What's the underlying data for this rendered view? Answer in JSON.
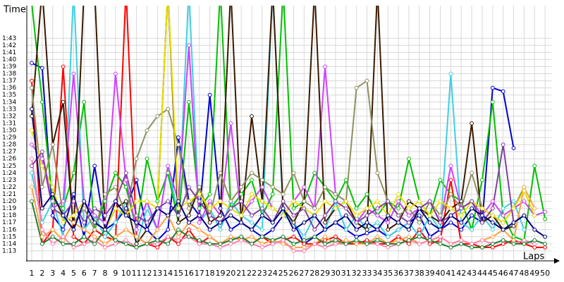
{
  "chart_data": {
    "type": "line",
    "y_label": "Time",
    "x_label": "Laps",
    "grid": true,
    "x": [
      1,
      2,
      3,
      4,
      5,
      6,
      7,
      8,
      9,
      10,
      11,
      12,
      13,
      14,
      15,
      16,
      17,
      18,
      19,
      20,
      21,
      22,
      23,
      24,
      25,
      26,
      27,
      28,
      29,
      30,
      31,
      32,
      33,
      34,
      35,
      36,
      37,
      38,
      39,
      40,
      41,
      42,
      43,
      44,
      45,
      46,
      47,
      48,
      49,
      50
    ],
    "xlim": [
      0.5,
      50.5
    ],
    "xticks": [
      1,
      2,
      3,
      4,
      5,
      6,
      7,
      8,
      9,
      10,
      11,
      12,
      13,
      14,
      15,
      16,
      17,
      18,
      19,
      20,
      21,
      22,
      23,
      24,
      25,
      26,
      27,
      28,
      29,
      30,
      31,
      32,
      33,
      34,
      35,
      36,
      37,
      38,
      39,
      40,
      41,
      42,
      43,
      44,
      45,
      46,
      47,
      48,
      49,
      50
    ],
    "ylim": [
      71.6,
      107.6
    ],
    "yticks": [
      {
        "value": 73,
        "label": "1:13"
      },
      {
        "value": 74,
        "label": "1:14"
      },
      {
        "value": 75,
        "label": "1:15"
      },
      {
        "value": 76,
        "label": "1:16"
      },
      {
        "value": 77,
        "label": "1:17"
      },
      {
        "value": 78,
        "label": "1:18"
      },
      {
        "value": 79,
        "label": "1:19"
      },
      {
        "value": 80,
        "label": "1:20"
      },
      {
        "value": 81,
        "label": "1:21"
      },
      {
        "value": 82,
        "label": "1:22"
      },
      {
        "value": 83,
        "label": "1:23"
      },
      {
        "value": 84,
        "label": "1:24"
      },
      {
        "value": 85,
        "label": "1:25"
      },
      {
        "value": 86,
        "label": "1:26"
      },
      {
        "value": 87,
        "label": "1:27"
      },
      {
        "value": 88,
        "label": "1:28"
      },
      {
        "value": 89,
        "label": "1:29"
      },
      {
        "value": 90,
        "label": "1:30"
      },
      {
        "value": 91,
        "label": "1:31"
      },
      {
        "value": 92,
        "label": "1:32"
      },
      {
        "value": 93,
        "label": "1:33"
      },
      {
        "value": 94,
        "label": "1:34"
      },
      {
        "value": 95,
        "label": "1:35"
      },
      {
        "value": 96,
        "label": "1:36"
      },
      {
        "value": 97,
        "label": "1:37"
      },
      {
        "value": 98,
        "label": "1:38"
      },
      {
        "value": 99,
        "label": "1:39"
      },
      {
        "value": 100,
        "label": "1:40"
      },
      {
        "value": 101,
        "label": "1:41"
      },
      {
        "value": 102,
        "label": "1:42"
      },
      {
        "value": 103,
        "label": "1:43"
      }
    ],
    "series": [
      {
        "color": "#0000d0",
        "values": [
          99.5,
          98.8,
          78,
          76,
          81,
          75,
          85,
          76,
          77,
          79,
          83,
          76,
          74.5,
          76,
          89,
          80,
          78,
          95,
          79,
          76,
          77,
          76,
          75,
          76,
          78,
          77,
          74,
          75,
          76,
          77,
          76,
          75,
          75.5,
          76,
          75,
          76,
          77,
          78,
          75,
          76,
          77,
          76,
          78,
          77,
          96,
          95.5,
          87.5,
          null,
          null,
          null
        ]
      },
      {
        "color": "#ff0000",
        "values": [
          97,
          74,
          76,
          99,
          75,
          74,
          76,
          75,
          74.5,
          110,
          75,
          74,
          73.5,
          75,
          74,
          76,
          74,
          75,
          74,
          74.5,
          75,
          74,
          75,
          74,
          74.5,
          75,
          74,
          74,
          74.5,
          75,
          74,
          74,
          74.5,
          74,
          74,
          75,
          74,
          76,
          74,
          74.5,
          83,
          74,
          74,
          73.5,
          73.5,
          74,
          74.5,
          74,
          73.5,
          73.5
        ]
      },
      {
        "color": "#00c000",
        "values": [
          108,
          94,
          80,
          79,
          84,
          94,
          76,
          80,
          84,
          82,
          76,
          86,
          80,
          84,
          77,
          94,
          79,
          81,
          110,
          79,
          81,
          83,
          78,
          81,
          110,
          79,
          80,
          84,
          82,
          80,
          83,
          79,
          81,
          78,
          80,
          79,
          86,
          80,
          78,
          83,
          81,
          80,
          76,
          83,
          94,
          78,
          75,
          74.5,
          85,
          77.5
        ]
      },
      {
        "color": "#40d0e0",
        "values": [
          84,
          77,
          80,
          75,
          110,
          76,
          78,
          75,
          77,
          80,
          74,
          79,
          76,
          85,
          78,
          110,
          77,
          79,
          76,
          80,
          78,
          77,
          76,
          110,
          78,
          77,
          75,
          78,
          76,
          80,
          76,
          78,
          76,
          77,
          75,
          76,
          77,
          75,
          78,
          76,
          98,
          77,
          76,
          78,
          76,
          79,
          80,
          76,
          null,
          null
        ]
      },
      {
        "color": "#d040ff",
        "values": [
          88,
          86,
          79,
          80,
          98,
          80,
          78,
          77,
          98,
          83,
          76,
          80,
          76,
          85,
          80,
          102,
          77,
          80,
          78,
          91,
          78,
          80,
          82,
          79,
          78,
          80,
          82,
          79,
          99,
          81,
          80,
          77,
          79,
          78,
          77,
          80,
          78,
          79,
          80,
          77,
          85,
          79,
          80,
          78,
          80,
          78,
          79,
          80,
          78,
          78.5
        ]
      },
      {
        "color": "#3a1a00",
        "values": [
          92,
          110,
          88,
          94,
          76,
          110,
          110,
          76,
          79,
          80,
          74,
          76,
          79,
          110,
          77,
          78,
          82,
          77,
          78,
          110,
          77,
          92,
          80,
          110,
          79,
          77,
          80,
          110,
          77,
          79,
          80,
          77,
          76,
          110,
          76,
          77,
          80,
          79,
          78,
          77,
          79,
          80,
          91,
          77,
          78,
          76,
          76.5,
          null,
          null,
          null
        ]
      },
      {
        "color": "#909060",
        "values": [
          96,
          82,
          88,
          78,
          77,
          79,
          76,
          81,
          82,
          78,
          86,
          90,
          92,
          93,
          88,
          79,
          82,
          78,
          84,
          80,
          82,
          84,
          83,
          82,
          81,
          84,
          80,
          79,
          82,
          81,
          80,
          96,
          97,
          84,
          80,
          78,
          79,
          77,
          80,
          78,
          81,
          79,
          84,
          79,
          78,
          77,
          79,
          82,
          null,
          null
        ]
      },
      {
        "color": "#ffa040",
        "values": [
          82,
          75,
          76,
          74.5,
          77,
          76,
          75,
          74,
          75,
          76,
          75,
          74,
          76,
          78,
          75,
          77,
          76,
          75,
          74,
          75,
          74.5,
          75,
          74,
          74.5,
          74,
          73.5,
          73.5,
          74,
          75,
          74,
          74.5,
          74,
          74,
          75,
          74,
          74.5,
          75,
          74,
          74.5,
          75,
          74,
          74.5,
          74,
          74.5,
          75,
          76,
          74.5,
          82,
          79,
          null
        ]
      },
      {
        "color": "#ff80b0",
        "values": [
          86,
          76,
          74,
          75,
          73.5,
          74,
          74.5,
          73.5,
          74,
          74.5,
          73.5,
          74,
          74,
          75,
          74.5,
          75,
          74,
          74,
          73.5,
          74,
          74.5,
          74,
          73.5,
          74,
          74.5,
          73,
          73,
          74,
          73.5,
          74,
          74,
          74.5,
          74,
          74,
          73.5,
          74,
          74.5,
          74,
          74.5,
          75,
          74,
          74.5,
          74,
          74.5,
          74,
          74.5,
          74,
          74.5,
          74,
          null
        ]
      },
      {
        "color": "#208030",
        "values": [
          80,
          74,
          75,
          74,
          74,
          75,
          74,
          76,
          74.5,
          74,
          73.5,
          74,
          74.5,
          74,
          76,
          75,
          74.5,
          74,
          74,
          74.5,
          75,
          74,
          75,
          74.5,
          75,
          74,
          74.5,
          75,
          74,
          74.5,
          74,
          74.5,
          74,
          74.5,
          74,
          74,
          74.5,
          75,
          74.5,
          74,
          73.5,
          74,
          73.5,
          73.5,
          74,
          74.5,
          74,
          74,
          74.5,
          74
        ]
      },
      {
        "color": "#e8e000",
        "values": [
          90,
          85,
          82,
          77,
          78,
          80,
          77,
          76,
          79,
          78,
          80,
          80,
          79,
          110,
          79,
          80,
          81,
          79,
          80,
          79,
          78,
          81,
          80,
          79,
          78,
          80,
          79,
          78,
          80,
          79,
          80,
          78,
          79,
          80,
          78,
          81,
          79,
          80,
          78,
          80,
          79,
          78,
          80,
          79,
          78,
          77,
          79,
          81.5,
          78,
          null
        ]
      },
      {
        "color": "#8040a0",
        "values": [
          85,
          87,
          79,
          78,
          80,
          77,
          79,
          78,
          80,
          84,
          78,
          77,
          79,
          80,
          78,
          82,
          80,
          78,
          77,
          79,
          80,
          78,
          79,
          77,
          80,
          78,
          79,
          76,
          78,
          80,
          79,
          77,
          78,
          79,
          80,
          78,
          77,
          79,
          80,
          77,
          78,
          79,
          80,
          77,
          79,
          88,
          77,
          78,
          null,
          null
        ]
      },
      {
        "color": "#000080",
        "values": [
          93,
          79,
          81,
          78,
          76,
          80,
          77,
          76,
          80,
          78,
          77,
          76,
          79,
          78,
          80,
          77,
          78,
          76,
          77,
          78,
          77,
          76,
          78,
          77,
          79,
          76,
          77,
          78,
          76,
          77,
          78,
          76,
          77,
          76,
          78,
          77,
          76,
          79,
          77,
          76,
          78,
          77,
          79,
          78,
          77,
          76,
          77,
          78,
          76,
          75
        ]
      }
    ]
  }
}
